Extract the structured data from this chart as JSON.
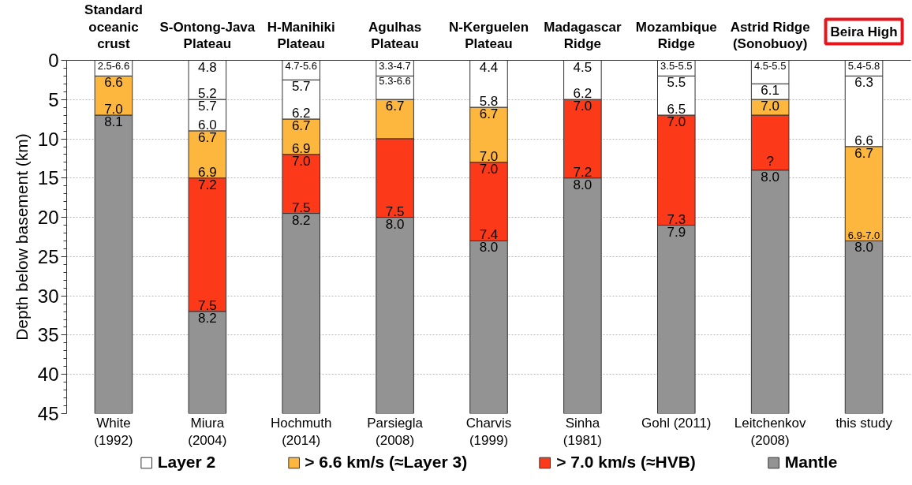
{
  "chart_data": {
    "type": "bar",
    "stacked": true,
    "ylabel": "Depth below basement (km)",
    "categories": [
      "White (1992)",
      "Miura (2004)",
      "Hochmuth (2014)",
      "Parsiegla (2008)",
      "Charvis (1999)",
      "Sinha (1981)",
      "Gohl (2011)",
      "Leitchenkov (2008)",
      "this study"
    ],
    "series": [
      {
        "name": "Layer 2",
        "color": "#ffffff",
        "values": [
          2,
          5,
          2.5,
          2,
          6,
          5,
          2,
          3,
          2
        ]
      },
      {
        "color": "#ffffff",
        "values": [
          null,
          4,
          5,
          3,
          null,
          null,
          5,
          2,
          9
        ]
      },
      {
        "name": "> 6.6 km/s (≈Layer 3)",
        "color": "#fdb73f",
        "values": [
          5,
          6,
          4.5,
          5,
          7,
          null,
          null,
          2,
          12
        ]
      },
      {
        "name": "> 7.0 km/s (≈HVB)",
        "color": "#fc3a1a",
        "values": [
          null,
          17,
          7.5,
          10,
          10,
          10,
          14,
          7,
          null
        ]
      },
      {
        "name": "Mantle",
        "color": "#939393",
        "values": [
          38,
          13,
          25.5,
          25,
          22,
          30,
          24,
          31,
          22
        ]
      }
    ],
    "ylim": [
      45,
      0
    ],
    "yticks": [
      0,
      5,
      10,
      15,
      20,
      25,
      30,
      35,
      40,
      45
    ],
    "grid": "y",
    "legend": "bottom",
    "annotations": [
      "Standard oceanic crust",
      "S-Ontong-Java Plateau",
      "H-Manihiki Plateau",
      "Agulhas Plateau",
      "N-Kerguelen Plateau",
      "Madagascar Ridge",
      "Mozambique Ridge",
      "Astrid Ridge (Sonobuoy)",
      "Beira High",
      {
        "text": "2.5-6.6",
        "x": "White (1992)",
        "y": 0
      },
      {
        "text": "6.6",
        "x": "White (1992)",
        "y": 2
      },
      {
        "text": "7.0",
        "x": "White (1992)",
        "y": 7
      },
      {
        "text": "8.1",
        "x": "White (1992)",
        "y": 7
      },
      {
        "text": "4.8",
        "x": "Miura (2004)",
        "y": 0
      },
      {
        "text": "5.2",
        "x": "Miura (2004)",
        "y": 5
      },
      {
        "text": "5.7",
        "x": "Miura (2004)",
        "y": 5
      },
      {
        "text": "6.0",
        "x": "Miura (2004)",
        "y": 9
      },
      {
        "text": "6.7",
        "x": "Miura (2004)",
        "y": 9
      },
      {
        "text": "6.9",
        "x": "Miura (2004)",
        "y": 15
      },
      {
        "text": "7.2",
        "x": "Miura (2004)",
        "y": 15
      },
      {
        "text": "7.5",
        "x": "Miura (2004)",
        "y": 32
      },
      {
        "text": "8.2",
        "x": "Miura (2004)",
        "y": 32
      },
      {
        "text": "4.7-5.6",
        "x": "Hochmuth (2014)",
        "y": 0
      },
      {
        "text": "5.7",
        "x": "Hochmuth (2014)",
        "y": 2.5
      },
      {
        "text": "6.2",
        "x": "Hochmuth (2014)",
        "y": 7.5
      },
      {
        "text": "6.7",
        "x": "Hochmuth (2014)",
        "y": 7.5
      },
      {
        "text": "6.9",
        "x": "Hochmuth (2014)",
        "y": 12
      },
      {
        "text": "7.0",
        "x": "Hochmuth (2014)",
        "y": 12
      },
      {
        "text": "7.5",
        "x": "Hochmuth (2014)",
        "y": 19.5
      },
      {
        "text": "8.2",
        "x": "Hochmuth (2014)",
        "y": 19.5
      },
      {
        "text": "3.3-4.7",
        "x": "Parsiegla (2008)",
        "y": 0
      },
      {
        "text": "5.3-6.6",
        "x": "Parsiegla (2008)",
        "y": 2
      },
      {
        "text": "6.7",
        "x": "Parsiegla (2008)",
        "y": 5
      },
      {
        "text": "7.5",
        "x": "Parsiegla (2008)",
        "y": 20
      },
      {
        "text": "8.0",
        "x": "Parsiegla (2008)",
        "y": 20
      },
      {
        "text": "4.4",
        "x": "Charvis (1999)",
        "y": 0
      },
      {
        "text": "5.8",
        "x": "Charvis (1999)",
        "y": 6
      },
      {
        "text": "6.7",
        "x": "Charvis (1999)",
        "y": 6
      },
      {
        "text": "7.0",
        "x": "Charvis (1999)",
        "y": 13
      },
      {
        "text": "7.0",
        "x": "Charvis (1999)",
        "y": 13
      },
      {
        "text": "7.4",
        "x": "Charvis (1999)",
        "y": 23
      },
      {
        "text": "8.0",
        "x": "Charvis (1999)",
        "y": 23
      },
      {
        "text": "4.5",
        "x": "Sinha (1981)",
        "y": 0
      },
      {
        "text": "6.2",
        "x": "Sinha (1981)",
        "y": 5
      },
      {
        "text": "7.0",
        "x": "Sinha (1981)",
        "y": 5
      },
      {
        "text": "7.2",
        "x": "Sinha (1981)",
        "y": 15
      },
      {
        "text": "8.0",
        "x": "Sinha (1981)",
        "y": 15
      },
      {
        "text": "3.5-5.5",
        "x": "Gohl (2011)",
        "y": 0
      },
      {
        "text": "5.5",
        "x": "Gohl (2011)",
        "y": 2
      },
      {
        "text": "6.5",
        "x": "Gohl (2011)",
        "y": 7
      },
      {
        "text": "7.0",
        "x": "Gohl (2011)",
        "y": 7
      },
      {
        "text": "7.3",
        "x": "Gohl (2011)",
        "y": 21
      },
      {
        "text": "7.9",
        "x": "Gohl (2011)",
        "y": 21
      },
      {
        "text": "4.5-5.5",
        "x": "Leitchenkov (2008)",
        "y": 0
      },
      {
        "text": "6.1",
        "x": "Leitchenkov (2008)",
        "y": 3
      },
      {
        "text": "7.0",
        "x": "Leitchenkov (2008)",
        "y": 5
      },
      {
        "text": "?",
        "x": "Leitchenkov (2008)",
        "y": 14
      },
      {
        "text": "8.0",
        "x": "Leitchenkov (2008)",
        "y": 14
      },
      {
        "text": "5.4-5.8",
        "x": "this study",
        "y": 0
      },
      {
        "text": "6.3",
        "x": "this study",
        "y": 2
      },
      {
        "text": "6.6",
        "x": "this study",
        "y": 11
      },
      {
        "text": "6.7",
        "x": "this study",
        "y": 11
      },
      {
        "text": "6.9-7.0",
        "x": "this study",
        "y": 23
      },
      {
        "text": "8.0",
        "x": "this study",
        "y": 23
      }
    ]
  }
}
